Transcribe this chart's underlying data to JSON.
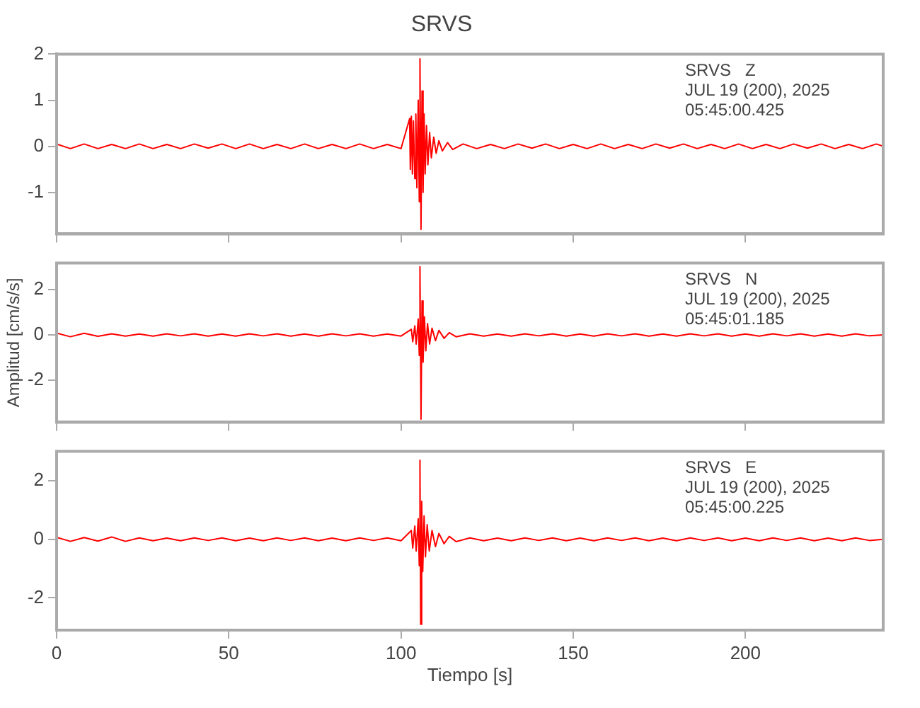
{
  "chart_data": [
    {
      "type": "line",
      "title": "SRVS",
      "annotations": [
        "SRVS   Z",
        "JUL 19 (200), 2025",
        "05:45:00.425"
      ],
      "xlim": [
        0,
        240
      ],
      "xticks": [
        0,
        50,
        100,
        150,
        200
      ],
      "ylim": [
        -1.9,
        2
      ],
      "yticks": [
        -1,
        0,
        1,
        2
      ],
      "tick_labels": "y",
      "grid": false,
      "legend": false,
      "marker": "none",
      "series": [
        {
          "color": "#ff0000",
          "x": [
            0,
            4,
            8,
            12,
            16,
            20,
            24,
            28,
            32,
            36,
            40,
            44,
            48,
            52,
            56,
            60,
            64,
            68,
            72,
            76,
            80,
            84,
            88,
            92,
            96,
            100,
            102.5,
            102.7,
            103,
            103.3,
            103.6,
            104,
            104.3,
            104.6,
            105,
            105.3,
            105.5,
            105.8,
            106.1,
            106.4,
            106.7,
            107,
            107.4,
            107.8,
            108.3,
            108.8,
            109.5,
            110.2,
            111,
            112,
            113.5,
            115,
            118,
            122,
            126,
            130,
            134,
            138,
            142,
            146,
            150,
            154,
            158,
            162,
            166,
            170,
            174,
            178,
            182,
            186,
            190,
            194,
            198,
            202,
            206,
            210,
            214,
            218,
            222,
            226,
            230,
            234,
            238,
            240
          ],
          "values": [
            0.05,
            -0.05,
            0.05,
            -0.05,
            0.04,
            -0.05,
            0.05,
            -0.05,
            0.04,
            -0.05,
            0.05,
            -0.04,
            0.05,
            -0.05,
            0.05,
            -0.05,
            0.04,
            -0.05,
            0.05,
            -0.05,
            0.04,
            -0.05,
            0.05,
            -0.05,
            0.04,
            -0.05,
            0.6,
            -0.5,
            0.65,
            -0.6,
            0.55,
            -0.7,
            0.7,
            -0.9,
            1.0,
            -1.2,
            1.9,
            -1.8,
            1.2,
            -1.0,
            0.7,
            -0.6,
            0.45,
            -0.4,
            0.3,
            -0.25,
            0.2,
            -0.15,
            0.12,
            -0.1,
            0.08,
            -0.07,
            0.05,
            -0.05,
            0.04,
            -0.05,
            0.05,
            -0.04,
            0.05,
            -0.05,
            0.04,
            -0.05,
            0.05,
            -0.05,
            0.04,
            -0.05,
            0.05,
            -0.04,
            0.05,
            -0.05,
            0.04,
            -0.05,
            0.05,
            -0.05,
            0.04,
            -0.05,
            0.05,
            -0.04,
            0.05,
            -0.05,
            0.04,
            -0.05,
            0.05,
            0
          ]
        }
      ]
    },
    {
      "type": "line",
      "ylabel": "Amplitud [cm/s/s]",
      "annotations": [
        "SRVS   N",
        "JUL 19 (200), 2025",
        "05:45:01.185"
      ],
      "xlim": [
        0,
        240
      ],
      "xticks": [
        0,
        50,
        100,
        150,
        200
      ],
      "ylim": [
        -3.84,
        3.16
      ],
      "yticks": [
        -2,
        0,
        2
      ],
      "tick_labels": "y",
      "grid": false,
      "legend": false,
      "marker": "none",
      "series": [
        {
          "color": "#ff0000",
          "x": [
            0,
            4,
            8,
            12,
            16,
            20,
            24,
            28,
            32,
            36,
            40,
            44,
            48,
            52,
            56,
            60,
            64,
            68,
            72,
            76,
            80,
            84,
            88,
            92,
            96,
            100,
            103,
            103.4,
            104,
            104.4,
            105,
            105.3,
            105.5,
            105.8,
            106.1,
            106.4,
            106.8,
            107.2,
            107.7,
            108.3,
            109,
            110,
            111,
            112.5,
            114,
            116,
            120,
            124,
            128,
            132,
            136,
            140,
            144,
            148,
            152,
            156,
            160,
            164,
            168,
            172,
            176,
            180,
            184,
            188,
            192,
            196,
            200,
            204,
            208,
            212,
            216,
            220,
            224,
            228,
            232,
            236,
            240
          ],
          "values": [
            0.08,
            -0.08,
            0.07,
            -0.06,
            0.05,
            -0.05,
            0.04,
            -0.05,
            0.05,
            -0.04,
            0.05,
            -0.05,
            0.04,
            -0.05,
            0.05,
            -0.04,
            0.05,
            -0.05,
            0.04,
            -0.05,
            0.05,
            -0.04,
            0.05,
            -0.05,
            0.04,
            -0.05,
            0.25,
            -0.3,
            0.4,
            -0.4,
            0.7,
            -0.9,
            3.0,
            -3.7,
            1.5,
            -1.2,
            0.8,
            -0.7,
            0.5,
            -0.4,
            0.3,
            -0.25,
            0.2,
            -0.15,
            0.1,
            -0.08,
            0.05,
            -0.05,
            0.04,
            -0.05,
            0.05,
            -0.04,
            0.05,
            -0.05,
            0.04,
            -0.05,
            0.05,
            -0.04,
            0.05,
            -0.05,
            0.04,
            -0.05,
            0.05,
            -0.04,
            0.05,
            -0.05,
            0.04,
            -0.05,
            0.05,
            -0.04,
            0.05,
            -0.05,
            0.04,
            -0.05,
            0.05,
            -0.04,
            0
          ]
        }
      ]
    },
    {
      "type": "line",
      "xlabel": "Tiempo [s]",
      "annotations": [
        "SRVS   E",
        "JUL 19 (200), 2025",
        "05:45:00.225"
      ],
      "xlim": [
        0,
        240
      ],
      "xticks": [
        0,
        50,
        100,
        150,
        200
      ],
      "ylim": [
        -3.1,
        3
      ],
      "yticks": [
        -2,
        0,
        2
      ],
      "grid": false,
      "legend": false,
      "marker": "none",
      "series": [
        {
          "color": "#ff0000",
          "x": [
            0,
            4,
            8,
            12,
            16,
            20,
            24,
            28,
            32,
            36,
            40,
            44,
            48,
            52,
            56,
            60,
            64,
            68,
            72,
            76,
            80,
            84,
            88,
            92,
            96,
            100,
            103,
            103.4,
            104,
            104.4,
            105,
            105.3,
            105.5,
            105.7,
            106,
            106.3,
            106.7,
            107.1,
            107.6,
            108.2,
            109,
            110,
            111,
            112.5,
            114,
            116,
            120,
            124,
            128,
            132,
            136,
            140,
            144,
            148,
            152,
            156,
            160,
            164,
            168,
            172,
            176,
            180,
            184,
            188,
            192,
            196,
            200,
            204,
            208,
            212,
            216,
            220,
            224,
            228,
            232,
            236,
            240
          ],
          "values": [
            0.07,
            -0.07,
            0.06,
            -0.06,
            0.08,
            -0.07,
            0.05,
            -0.05,
            0.04,
            -0.05,
            0.05,
            -0.04,
            0.05,
            -0.05,
            0.04,
            -0.05,
            0.05,
            -0.04,
            0.05,
            -0.05,
            0.04,
            -0.05,
            0.05,
            -0.04,
            0.05,
            -0.05,
            0.3,
            -0.3,
            0.45,
            -0.4,
            0.7,
            -0.9,
            2.7,
            -2.9,
            1.3,
            -1.1,
            0.8,
            -0.6,
            0.5,
            -0.4,
            0.3,
            -0.25,
            0.2,
            -0.15,
            0.1,
            -0.08,
            0.05,
            -0.05,
            0.04,
            -0.05,
            0.05,
            -0.04,
            0.05,
            -0.05,
            0.04,
            -0.05,
            0.05,
            -0.04,
            0.05,
            -0.05,
            0.04,
            -0.05,
            0.05,
            -0.04,
            0.05,
            -0.05,
            0.04,
            -0.05,
            0.05,
            -0.04,
            0.05,
            -0.05,
            0.04,
            -0.05,
            0.05,
            -0.04,
            0
          ]
        }
      ]
    }
  ]
}
